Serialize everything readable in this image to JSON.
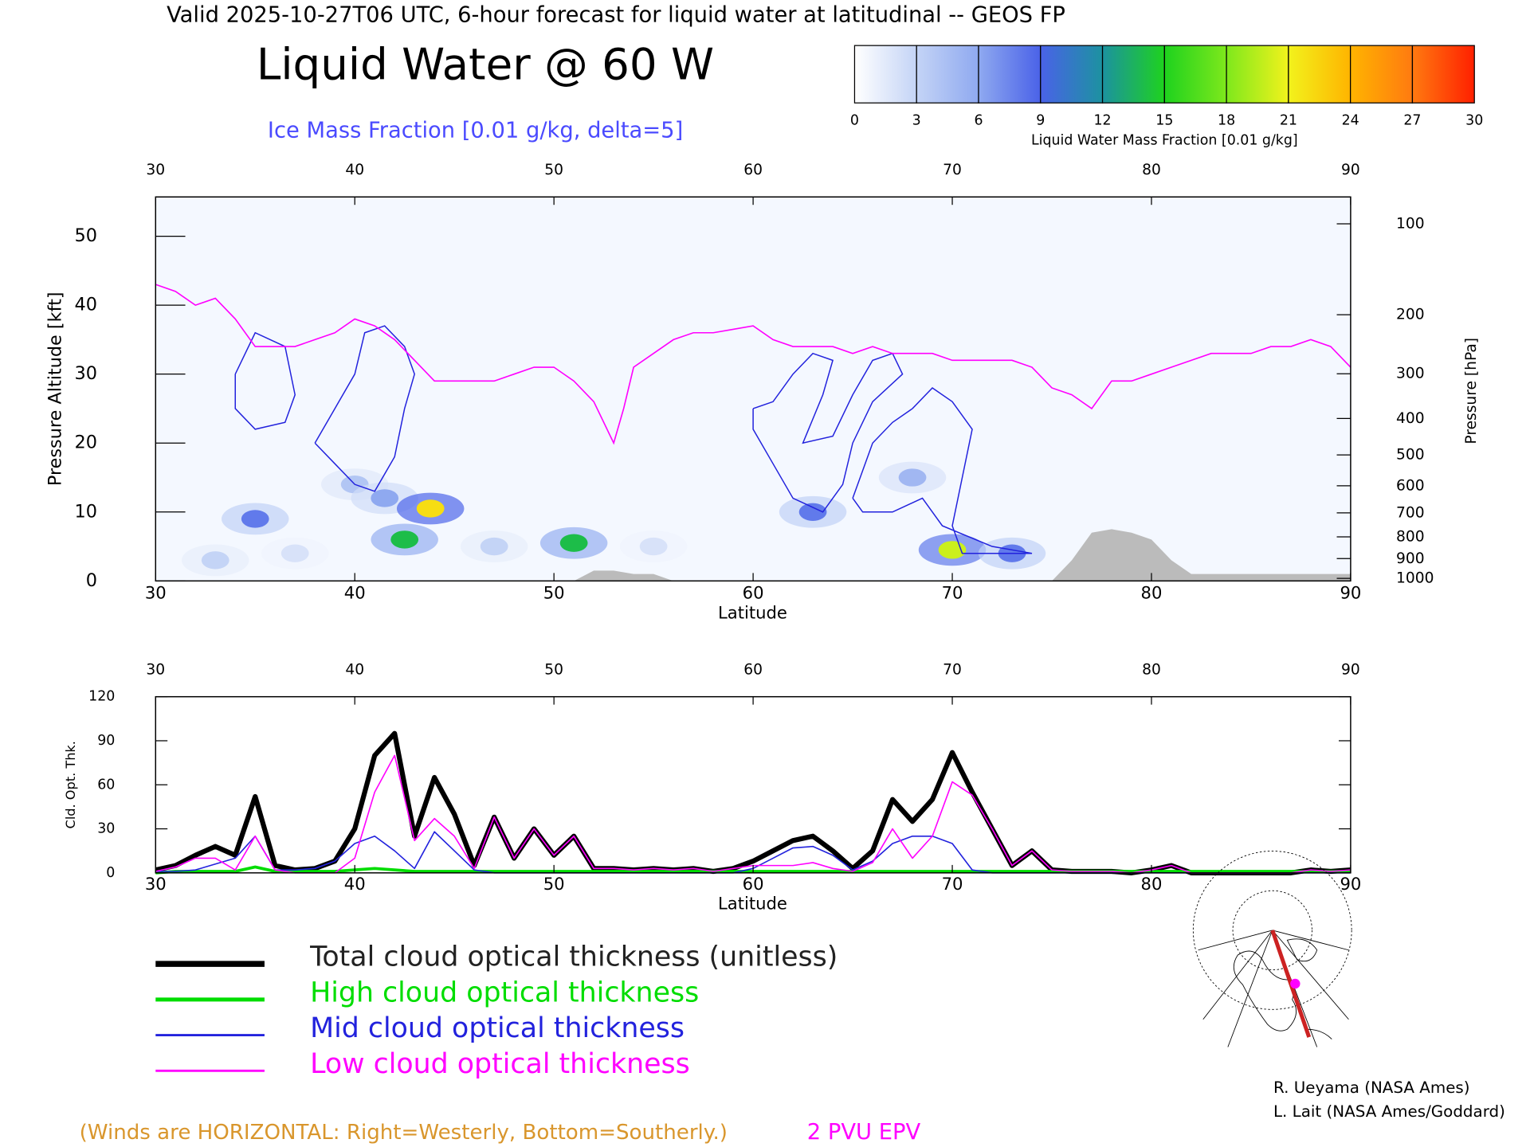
{
  "chart_data": [
    {
      "type": "cross-section",
      "suptitle": "Valid 2025-10-27T06 UTC, 6-hour forecast for liquid water at latitudinal -- GEOS FP",
      "title": "Liquid Water @ 60 W",
      "subtitle": "Ice Mass Fraction [0.01 g/kg, delta=5]",
      "xlabel": "Latitude",
      "ylabel": "Pressure Altitude [kft]",
      "y2label": "Pressure [hPa]",
      "xlim": [
        30,
        90
      ],
      "xticks": [
        30,
        40,
        50,
        60,
        70,
        80,
        90
      ],
      "ylim": [
        0,
        55.7
      ],
      "yticks": [
        0,
        10,
        20,
        30,
        40,
        50
      ],
      "y2scale": "pressure-altitude",
      "y2ticks": [
        100,
        200,
        300,
        400,
        500,
        600,
        700,
        800,
        900,
        1000
      ],
      "colorbar": {
        "label": "Liquid Water Mass Fraction [0.01 g/kg]",
        "ticks": [
          0,
          3,
          6,
          9,
          12,
          15,
          18,
          21,
          24,
          27,
          30
        ],
        "colors": [
          "#ffffff",
          "#c4d4f6",
          "#8fa9f0",
          "#4a62e8",
          "#1c92a0",
          "#1ed21e",
          "#7ee81c",
          "#f2f21c",
          "#ffb400",
          "#ff7a10",
          "#ff2000"
        ]
      },
      "liquid_water": {
        "lat": [
          35,
          33,
          37,
          40,
          41.5,
          42.5,
          43.8,
          47,
          51,
          55,
          63,
          68,
          70,
          73
        ],
        "alt": [
          9,
          3,
          4,
          14,
          12,
          6,
          10.5,
          5,
          5.5,
          5,
          10,
          15,
          4.5,
          4
        ],
        "values": [
          8,
          3,
          2,
          4,
          6,
          14,
          22,
          3,
          14,
          2,
          8,
          5,
          20,
          8
        ]
      },
      "ice_contours": [
        {
          "color": "#2222dd",
          "x": [
            34,
            35,
            36.5,
            37,
            36.5,
            35,
            34,
            34
          ],
          "y": [
            30,
            36,
            34,
            27,
            23,
            22,
            25,
            30
          ]
        },
        {
          "color": "#2222dd",
          "x": [
            38,
            39,
            40,
            40.5,
            41.5,
            42.5,
            43,
            42.5,
            42,
            41,
            40,
            39,
            38
          ],
          "y": [
            20,
            25,
            30,
            36,
            37,
            34,
            30,
            25,
            18,
            13,
            14,
            17,
            20
          ]
        },
        {
          "color": "#2222dd",
          "x": [
            60,
            61,
            62,
            63,
            64,
            63.5,
            62.5,
            64,
            65,
            66,
            67,
            67.5,
            66,
            65,
            64.5,
            63.5,
            62,
            61,
            60,
            60
          ],
          "y": [
            25,
            26,
            30,
            33,
            32,
            27,
            20,
            21,
            27,
            32,
            33,
            30,
            26,
            20,
            14,
            10,
            12,
            17,
            22,
            25
          ]
        },
        {
          "color": "#2222dd",
          "x": [
            65,
            66,
            67,
            68,
            69,
            70,
            71,
            70.5,
            70,
            70.5,
            74,
            72,
            69.5,
            68.5,
            67,
            65.5,
            65
          ],
          "y": [
            12,
            20,
            23,
            25,
            28,
            26,
            22,
            15,
            8,
            4,
            4,
            5,
            8,
            12,
            10,
            10,
            12
          ]
        }
      ],
      "epv": {
        "name": "2 PVU EPV",
        "color": "#ff00ff",
        "x": [
          30,
          31,
          32,
          33,
          34,
          35,
          36,
          37,
          38,
          39,
          40,
          41,
          42,
          43,
          44,
          45,
          46,
          47,
          48,
          49,
          50,
          51,
          52,
          53,
          53.5,
          54,
          55,
          56,
          57,
          58,
          59,
          60,
          61,
          62,
          63,
          64,
          65,
          66,
          67,
          68,
          69,
          70,
          71,
          72,
          73,
          74,
          75,
          76,
          77,
          78,
          79,
          80,
          81,
          82,
          83,
          84,
          85,
          86,
          87,
          88,
          89,
          90
        ],
        "y": [
          43,
          42,
          40,
          41,
          38,
          34,
          34,
          34,
          35,
          36,
          38,
          37,
          35,
          32,
          29,
          29,
          29,
          29,
          30,
          31,
          31,
          29,
          26,
          20,
          25,
          31,
          33,
          35,
          36,
          36,
          36.5,
          37,
          35,
          34,
          34,
          34,
          33,
          34,
          33,
          33,
          33,
          32,
          32,
          32,
          32,
          31,
          28,
          27,
          25,
          29,
          29,
          30,
          31,
          32,
          33,
          33,
          33,
          34,
          34,
          35,
          34,
          31
        ]
      },
      "terrain": {
        "color": "#bbbbbb",
        "x": [
          30,
          51,
          52,
          53,
          54,
          55,
          56,
          75,
          76,
          77,
          78,
          79,
          80,
          81,
          82,
          90
        ],
        "y": [
          0,
          0,
          1.5,
          1.5,
          1,
          1,
          0,
          0,
          3,
          7,
          7.5,
          7,
          6,
          3,
          1,
          1
        ]
      }
    },
    {
      "type": "line",
      "xlabel": "Latitude",
      "ylabel": "Cld. Opt. Thk.",
      "xlim": [
        30,
        90
      ],
      "xticks": [
        30,
        40,
        50,
        60,
        70,
        80,
        90
      ],
      "ylim": [
        0,
        120
      ],
      "yticks": [
        0,
        30,
        60,
        90,
        120
      ],
      "x": [
        30,
        31,
        32,
        33,
        34,
        35,
        36,
        37,
        38,
        39,
        40,
        41,
        42,
        43,
        44,
        45,
        46,
        47,
        48,
        49,
        50,
        51,
        52,
        53,
        54,
        55,
        56,
        57,
        58,
        59,
        60,
        61,
        62,
        63,
        64,
        65,
        66,
        67,
        68,
        69,
        70,
        71,
        72,
        73,
        74,
        75,
        76,
        77,
        78,
        79,
        80,
        81,
        82,
        83,
        84,
        85,
        86,
        87,
        88,
        89,
        90
      ],
      "series": [
        {
          "name": "Total cloud optical thickness (unitless)",
          "color": "#000000",
          "linewidth": 5,
          "values": [
            2,
            5,
            12,
            18,
            12,
            52,
            5,
            2,
            3,
            8,
            30,
            80,
            95,
            25,
            65,
            40,
            5,
            38,
            10,
            30,
            12,
            25,
            3,
            3,
            2,
            3,
            2,
            3,
            1,
            3,
            8,
            15,
            22,
            25,
            15,
            3,
            15,
            50,
            35,
            50,
            82,
            55,
            30,
            5,
            15,
            2,
            1,
            1,
            1,
            0,
            2,
            5,
            0,
            0,
            0,
            0,
            0,
            0,
            2,
            1,
            2
          ]
        },
        {
          "name": "High cloud optical thickness",
          "color": "#00dd00",
          "linewidth": 3,
          "values": [
            0,
            1,
            1,
            1,
            1,
            4,
            1,
            1,
            1,
            1,
            2,
            3,
            2,
            1,
            1,
            1,
            1,
            1,
            1,
            1,
            1,
            1,
            1,
            1,
            1,
            1,
            1,
            1,
            1,
            1,
            1,
            1,
            1,
            1,
            1,
            1,
            1,
            1,
            1,
            1,
            1,
            1,
            1,
            1,
            1,
            1,
            1,
            1,
            1,
            1,
            1,
            1,
            1,
            1,
            1,
            1,
            1,
            1,
            1,
            1,
            1
          ]
        },
        {
          "name": "Mid cloud optical thickness",
          "color": "#2222dd",
          "linewidth": 1.3,
          "values": [
            1,
            1,
            2,
            6,
            10,
            25,
            2,
            2,
            3,
            8,
            20,
            25,
            15,
            3,
            28,
            15,
            2,
            0,
            0,
            0,
            0,
            0,
            0,
            0,
            0,
            0,
            0,
            0,
            0,
            0,
            3,
            10,
            17,
            18,
            12,
            2,
            8,
            20,
            25,
            25,
            20,
            2,
            0,
            0,
            0,
            0,
            0,
            0,
            0,
            0,
            0,
            0,
            0,
            0,
            0,
            0,
            0,
            0,
            0,
            0,
            0
          ]
        },
        {
          "name": "Low cloud optical thickness",
          "color": "#ff00ff",
          "linewidth": 1.3,
          "values": [
            1,
            4,
            10,
            10,
            2,
            25,
            2,
            0,
            0,
            0,
            10,
            55,
            80,
            22,
            37,
            25,
            3,
            38,
            10,
            30,
            12,
            25,
            3,
            3,
            2,
            3,
            2,
            3,
            1,
            3,
            5,
            5,
            5,
            7,
            3,
            1,
            7,
            30,
            10,
            25,
            62,
            53,
            30,
            5,
            15,
            2,
            1,
            1,
            1,
            0,
            2,
            5,
            0,
            0,
            0,
            0,
            0,
            0,
            2,
            1,
            2
          ]
        }
      ]
    }
  ],
  "note": "(Winds are HORIZONTAL: Right=Westerly, Bottom=Southerly.)",
  "credits": [
    "R. Ueyama (NASA Ames)",
    "L. Lait (NASA Ames/Goddard)"
  ]
}
